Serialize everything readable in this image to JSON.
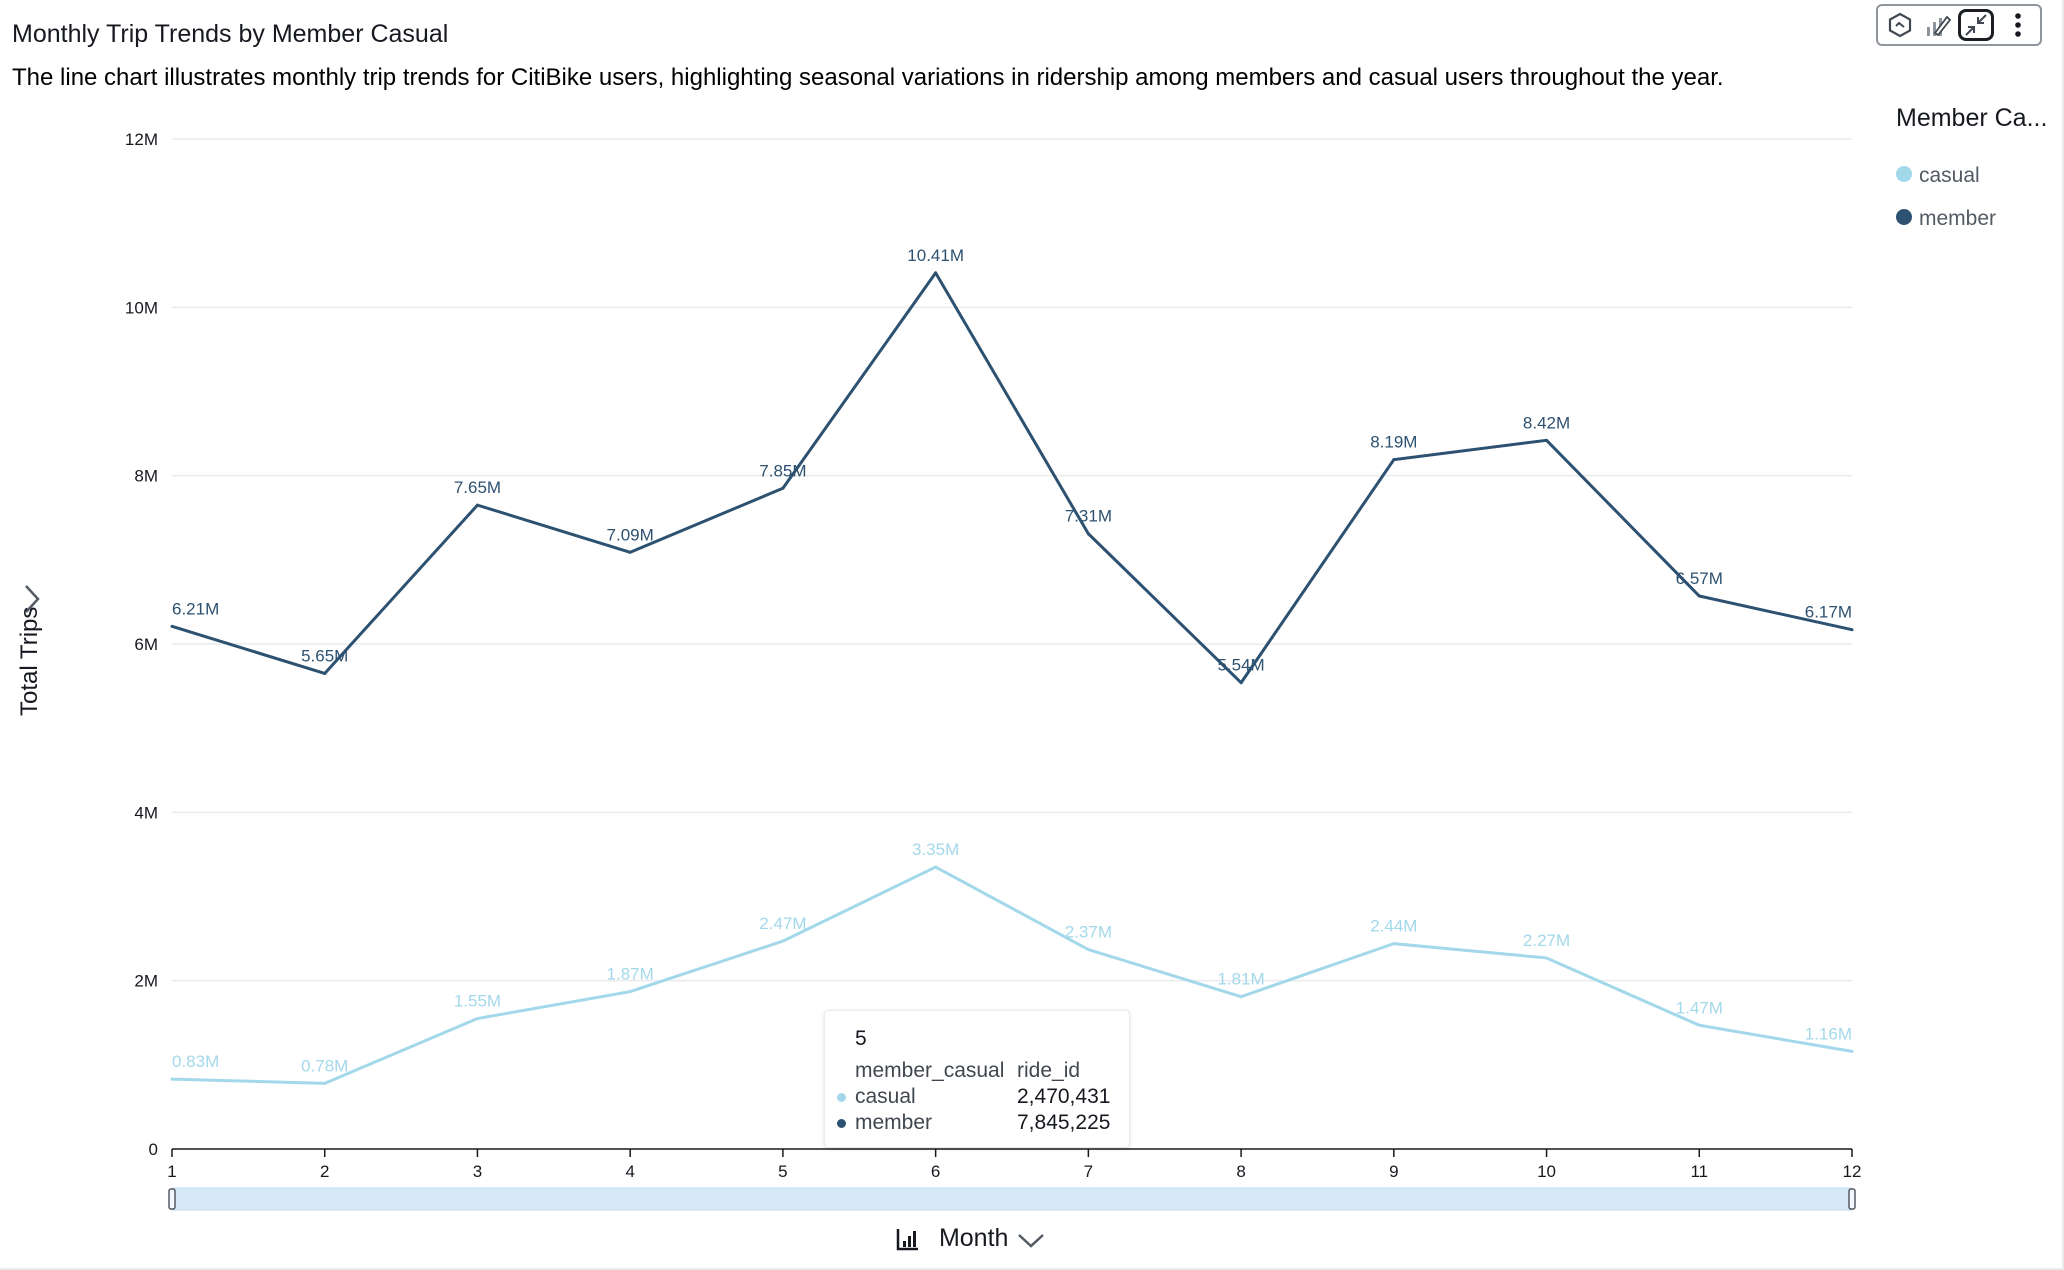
{
  "header": {
    "title": "Monthly Trip Trends by Member Casual",
    "subtitle": "The line chart illustrates monthly trip trends for CitiBike users, highlighting seasonal variations in ridership among members and casual users throughout the year."
  },
  "toolbar": {
    "icons": [
      "insight-icon",
      "edit-chart-icon",
      "collapse-icon",
      "more-options-icon"
    ]
  },
  "legend": {
    "title": "Member Ca...",
    "items": [
      {
        "label": "casual",
        "color": "#a3d8eb"
      },
      {
        "label": "member",
        "color": "#2d5170"
      }
    ]
  },
  "axes": {
    "y_title": "Total Trips",
    "x_title": "Month"
  },
  "tooltip": {
    "header": "5",
    "col1_header": "member_casual",
    "col2_header": "ride_id",
    "rows": [
      {
        "label": "casual",
        "value": "2,470,431",
        "color": "#a3d8eb"
      },
      {
        "label": "member",
        "value": "7,845,225",
        "color": "#2d5170"
      }
    ]
  },
  "chart_data": {
    "type": "line",
    "x": [
      1,
      2,
      3,
      4,
      5,
      6,
      7,
      8,
      9,
      10,
      11,
      12
    ],
    "xlabel": "Month",
    "ylabel": "Total Trips",
    "ylim": [
      0,
      12000000
    ],
    "yticks": [
      0,
      2000000,
      4000000,
      6000000,
      8000000,
      10000000,
      12000000
    ],
    "ytick_labels": [
      "0",
      "2M",
      "4M",
      "6M",
      "8M",
      "10M",
      "12M"
    ],
    "grid": true,
    "legend_position": "right",
    "series": [
      {
        "name": "casual",
        "color": "#a3d8eb",
        "values": [
          830000,
          780000,
          1550000,
          1870000,
          2470000,
          3350000,
          2370000,
          1810000,
          2440000,
          2270000,
          1470000,
          1160000
        ],
        "labels": [
          "0.83M",
          "0.78M",
          "1.55M",
          "1.87M",
          "2.47M",
          "3.35M",
          "2.37M",
          "1.81M",
          "2.44M",
          "2.27M",
          "1.47M",
          "1.16M"
        ]
      },
      {
        "name": "member",
        "color": "#2d5170",
        "values": [
          6210000,
          5650000,
          7650000,
          7090000,
          7850000,
          10410000,
          7310000,
          5540000,
          8190000,
          8420000,
          6570000,
          6170000
        ],
        "labels": [
          "6.21M",
          "5.65M",
          "7.65M",
          "7.09M",
          "7.85M",
          "10.41M",
          "7.31M",
          "5.54M",
          "8.19M",
          "8.42M",
          "6.57M",
          "6.17M"
        ]
      }
    ]
  }
}
